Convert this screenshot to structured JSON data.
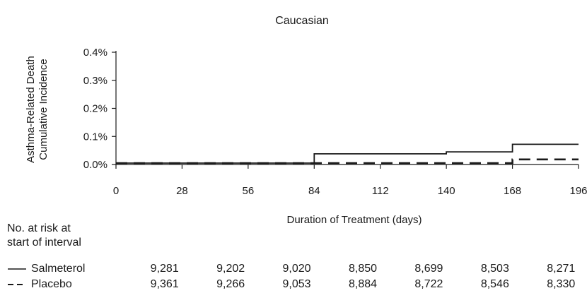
{
  "chart_data": {
    "type": "line",
    "title": "Caucasian",
    "xlabel": "Duration of Treatment (days)",
    "ylabel_lines": [
      "Asthma-Related Death",
      "Cumulative Incidence"
    ],
    "x_ticks": [
      0,
      28,
      56,
      84,
      112,
      140,
      168,
      196
    ],
    "y_ticks": [
      "0.0%",
      "0.1%",
      "0.2%",
      "0.3%",
      "0.4%"
    ],
    "xlim": [
      0,
      196
    ],
    "ylim": [
      0,
      0.4
    ],
    "grid": false,
    "series": [
      {
        "name": "Salmeterol",
        "style": "solid",
        "color": "#1a1a1a",
        "x": [
          0,
          84,
          84,
          140,
          140,
          168,
          168,
          196
        ],
        "y": [
          0.005,
          0.005,
          0.038,
          0.038,
          0.045,
          0.045,
          0.072,
          0.072
        ]
      },
      {
        "name": "Placebo",
        "style": "dashed",
        "color": "#1a1a1a",
        "x": [
          0,
          168,
          168,
          196
        ],
        "y": [
          0.005,
          0.005,
          0.018,
          0.018
        ]
      }
    ]
  },
  "risk_table": {
    "header": [
      "No. at risk at",
      "start of interval"
    ],
    "rows": [
      {
        "label": "Salmeterol",
        "values": [
          "9,281",
          "9,202",
          "9,020",
          "8,850",
          "8,699",
          "8,503",
          "8,271"
        ]
      },
      {
        "label": "Placebo",
        "values": [
          "9,361",
          "9,266",
          "9,053",
          "8,884",
          "8,722",
          "8,546",
          "8,330"
        ]
      }
    ]
  }
}
